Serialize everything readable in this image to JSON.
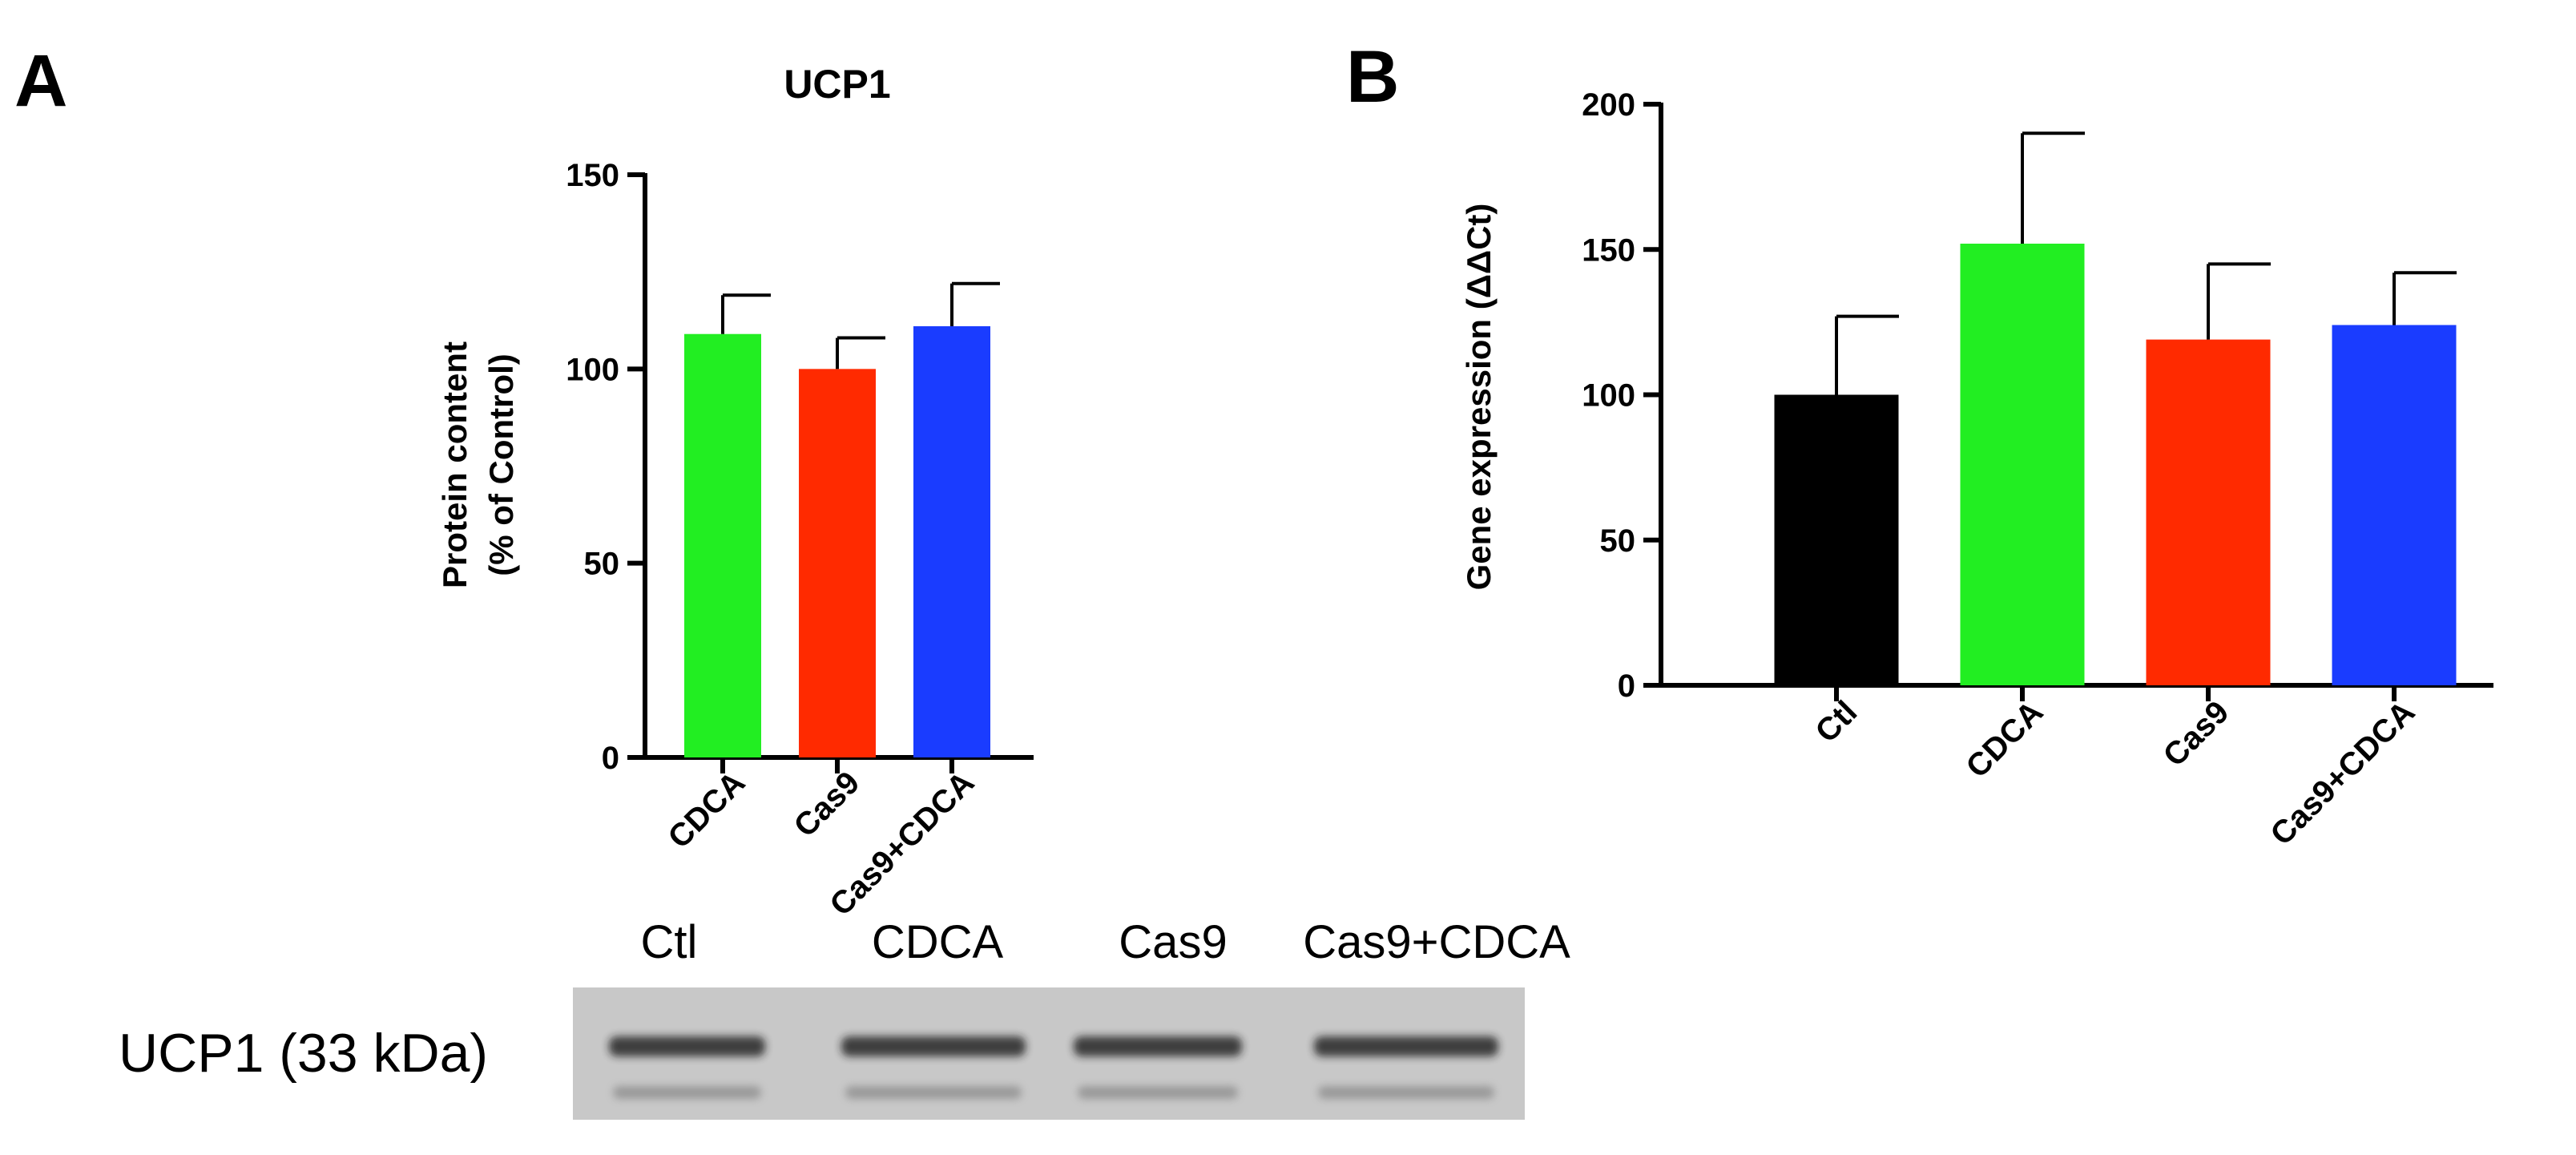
{
  "panels": {
    "a": {
      "letter": "A"
    },
    "b": {
      "letter": "B"
    }
  },
  "chart_data": [
    {
      "type": "bar",
      "panel": "A",
      "title": "UCP1",
      "categories": [
        "CDCA",
        "Cas9",
        "Cas9+CDCA"
      ],
      "values": [
        109,
        100,
        111
      ],
      "errors": [
        10,
        8,
        11
      ],
      "colors": [
        "#22ee22",
        "#ff2a00",
        "#1a3cff"
      ],
      "ylabel_lines": [
        "Protein content",
        "(% of Control)"
      ],
      "xlabel": "",
      "ylim": [
        0,
        150
      ],
      "yticks": [
        "0",
        "50",
        "100",
        "150"
      ],
      "grid": false,
      "legend": "none"
    },
    {
      "type": "bar",
      "panel": "B",
      "title": "",
      "categories": [
        "Ctl",
        "CDCA",
        "Cas9",
        "Cas9+CDCA"
      ],
      "values": [
        100,
        152,
        119,
        124
      ],
      "errors": [
        27,
        38,
        26,
        18
      ],
      "colors": [
        "#000000",
        "#22ee22",
        "#ff2a00",
        "#1a3cff"
      ],
      "ylabel": "Gene expression (ΔΔCt)",
      "xlabel": "",
      "ylim": [
        0,
        200
      ],
      "yticks": [
        "0",
        "50",
        "100",
        "150",
        "200"
      ],
      "grid": false,
      "legend": "none"
    }
  ],
  "blot": {
    "protein_label": "UCP1 (33 kDa)",
    "lanes": [
      "Ctl",
      "CDCA",
      "Cas9",
      "Cas9+CDCA"
    ],
    "band_colors": [
      "#1e1e1e",
      "#8a8a8a"
    ]
  }
}
